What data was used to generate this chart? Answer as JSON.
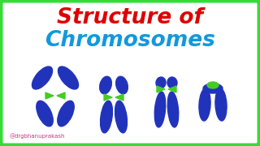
{
  "bg_color": "#ffffff",
  "border_color": "#33dd33",
  "title_line1": "Structure of",
  "title_line2": "Chromosomes",
  "title1_color": "#dd0000",
  "title2_color": "#1199dd",
  "title_fontsize": 19,
  "watermark": "@drgbhanuprakash",
  "watermark_color": "#cc3388",
  "chrom_color": "#2233bb",
  "centromere_color": "#44cc22"
}
